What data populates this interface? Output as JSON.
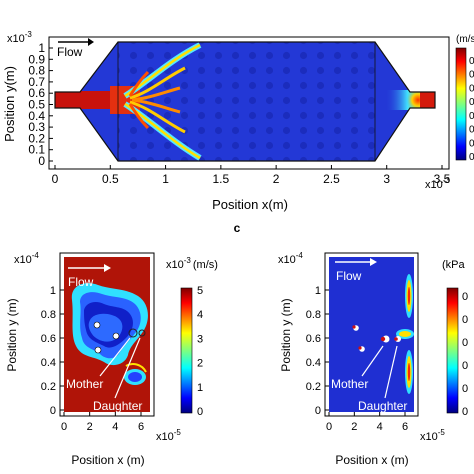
{
  "top_panel": {
    "flow_label": "Flow",
    "y_exponent": "x10",
    "y_exponent_power": "-3",
    "x_exponent": "x10",
    "x_exponent_power": "-3",
    "xlabel": "Position x(m)",
    "ylabel": "Position y(m)",
    "y_ticks": [
      "0",
      "0.1",
      "0.2",
      "0.3",
      "0.4",
      "0.5",
      "0.6",
      "0.7",
      "0.8",
      "0.9",
      "1"
    ],
    "x_ticks": [
      "0",
      "0.5",
      "1",
      "1.5",
      "2",
      "2.5",
      "3",
      "3.5"
    ],
    "colorbar_unit": "(m/s",
    "colorbar_ticks": [
      "0",
      "0",
      "0",
      "0",
      "0",
      "0",
      "0",
      "0"
    ]
  },
  "panel_label_c": "c",
  "bottom_left": {
    "y_exponent": "x10",
    "y_exponent_power": "-4",
    "x_exponent": "x10",
    "x_exponent_power": "-5",
    "xlabel": "Position x (m)",
    "ylabel": "Position y (m)",
    "y_ticks": [
      "0",
      "0.2",
      "0.4",
      "0.6",
      "0.8",
      "1"
    ],
    "x_ticks": [
      "0",
      "2",
      "4",
      "6"
    ],
    "flow_label": "Flow",
    "mother_label": "Mother",
    "daughter_label": "Daughter",
    "colorbar_exponent": "x10",
    "colorbar_exponent_power": "-3",
    "colorbar_unit": "(m/s)",
    "colorbar_ticks": [
      "0",
      "1",
      "2",
      "3",
      "4",
      "5"
    ]
  },
  "bottom_right": {
    "y_exponent": "x10",
    "y_exponent_power": "-4",
    "x_exponent": "x10",
    "x_exponent_power": "-5",
    "xlabel": "Position x (m)",
    "ylabel": "Position y (m)",
    "y_ticks": [
      "0",
      "0.2",
      "0.4",
      "0.6",
      "0.8",
      "1"
    ],
    "x_ticks": [
      "0",
      "2",
      "4",
      "6"
    ],
    "flow_label": "Flow",
    "mother_label": "Mother",
    "daughter_label": "Daughter",
    "colorbar_unit": "(kPa",
    "colorbar_ticks": [
      "0",
      "0",
      "0",
      "0",
      "0",
      "0"
    ]
  },
  "colors": {
    "jet_blue": "#1a2cc8",
    "jet_red": "#b0120a",
    "flow_arrow": "#ffffff"
  }
}
